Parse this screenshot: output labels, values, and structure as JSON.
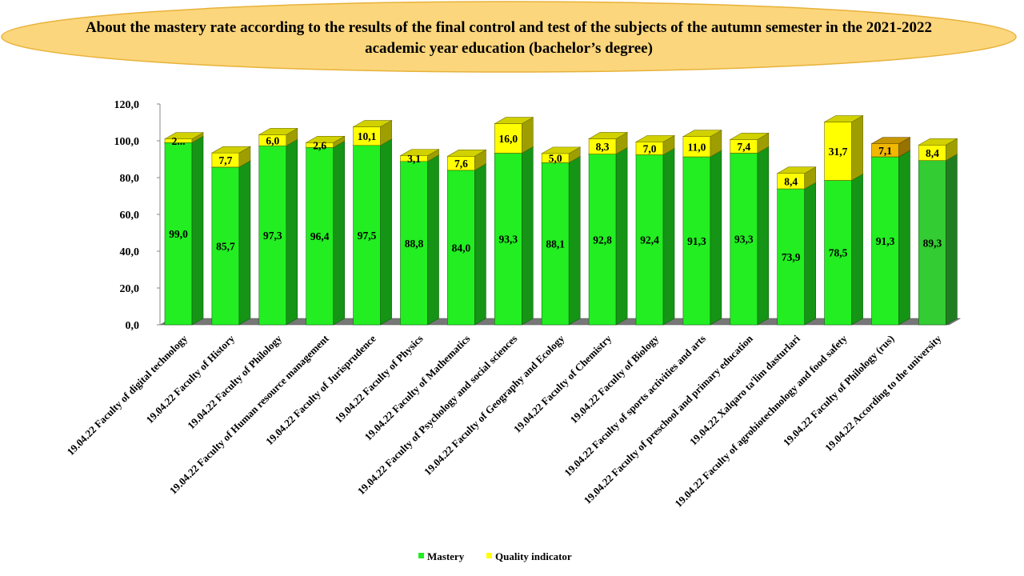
{
  "chart_data": {
    "type": "bar",
    "stacked": true,
    "title": "About the mastery rate according to the results of the final control and test of the subjects of the autumn semester in the 2021-2022 academic year education (bachelor’s degree)",
    "title_lines": [
      "About the mastery rate according to the results of the final control and test of the subjects of the autumn semester in the 2021-2022",
      "academic year education (bachelor’s degree)"
    ],
    "ylim": [
      0,
      120
    ],
    "yticks": [
      0,
      20,
      40,
      60,
      80,
      100,
      120
    ],
    "ytick_labels": [
      "0,0",
      "20,0",
      "40,0",
      "60,0",
      "80,0",
      "100,0",
      "120,0"
    ],
    "grid": false,
    "legend_position": "bottom",
    "categories": [
      "19.04.22 Faculty of digital technology",
      "19.04.22 Faculty of History",
      "19.04.22 Faculty of Philology",
      "19.04.22 Faculty of Human resource management",
      "19.04.22 Faculty of Jurisprudence",
      "19.04.22 Faculty of Physics",
      "19.04.22 Faculty of Mathematics",
      "19.04.22 Faculty of Psychology and social sciences",
      "19.04.22 Faculty of Geography and Ecology",
      "19.04.22 Faculty of Chemistry",
      "19.04.22 Faculty of Biology",
      "19.04.22 Faculty of sports activities and arts",
      "19.04.22 Faculty of preschool and primary education",
      "19.04.22 Xalqaro ta'lim dasturlari",
      "19.04.22 Faculty of agrobiotechnology and food safety",
      "19.04.22 Faculty of Philology (rus)",
      "19.04.22 According to the university"
    ],
    "series": [
      {
        "name": "Mastery",
        "color": "#22ee22",
        "values": [
          99.0,
          85.7,
          97.3,
          96.4,
          97.5,
          88.8,
          84.0,
          93.3,
          88.1,
          92.8,
          92.4,
          91.3,
          93.3,
          73.9,
          78.5,
          91.3,
          89.3
        ],
        "labels": [
          "99,0",
          "85,7",
          "97,3",
          "96,4",
          "97,5",
          "88,8",
          "84,0",
          "93,3",
          "88,1",
          "92,8",
          "92,4",
          "91,3",
          "93,3",
          "73,9",
          "78,5",
          "91,3",
          "89,3"
        ]
      },
      {
        "name": "Quality indicator",
        "color": "#ffff00",
        "values": [
          2.0,
          7.7,
          6.0,
          2.6,
          10.1,
          3.1,
          7.6,
          16.0,
          5.0,
          8.3,
          7.0,
          11.0,
          7.4,
          8.4,
          31.7,
          7.1,
          8.4
        ],
        "labels": [
          "2...",
          "7,7",
          "6,0",
          "2,6",
          "10,1",
          "3,1",
          "7,6",
          "16,0",
          "5,0",
          "8,3",
          "7,0",
          "11,0",
          "7,4",
          "8,4",
          "31,7",
          "7,1",
          "8,4"
        ]
      }
    ],
    "colors": {
      "title_banner_fill": "#fcd67c",
      "title_banner_stroke": "#e7b23a",
      "mastery": "#22ee22",
      "mastery_highlight": "#33cc33",
      "quality": "#ffff00",
      "quality_highlight": "#f2b800"
    }
  }
}
